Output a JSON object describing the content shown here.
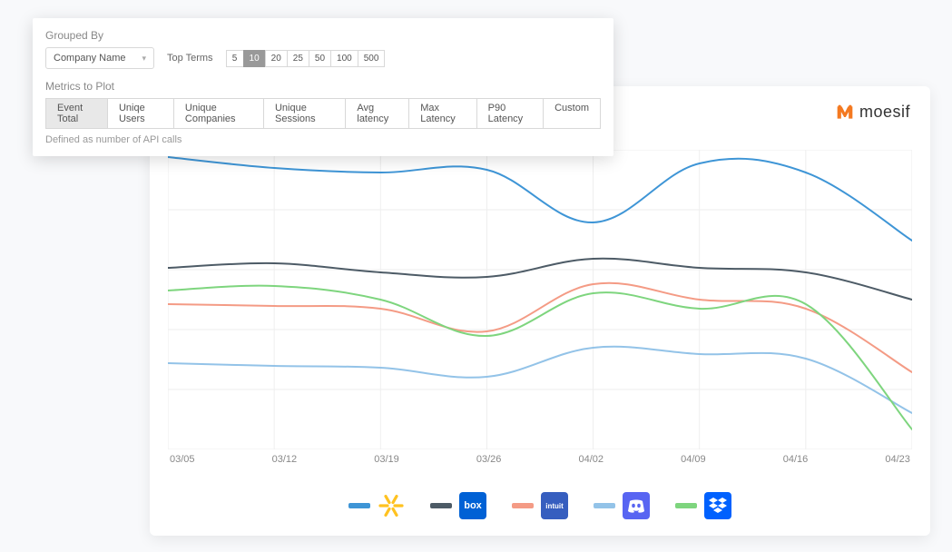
{
  "panel": {
    "grouped_by_label": "Grouped By",
    "dropdown_value": "Company Name",
    "top_terms_label": "Top Terms",
    "top_terms": [
      "5",
      "10",
      "20",
      "25",
      "50",
      "100",
      "500"
    ],
    "top_terms_active": "10",
    "metrics_label": "Metrics to Plot",
    "metrics": [
      "Event Total",
      "Uniqe Users",
      "Unique Companies",
      "Unique Sessions",
      "Avg latency",
      "Max Latency",
      "P90 Latency",
      "Custom"
    ],
    "metric_active": "Event Total",
    "helper": "Defined as number of API calls"
  },
  "brand": {
    "name": "moesif",
    "accent_color": "#f47920"
  },
  "chart": {
    "type": "line",
    "background_color": "#ffffff",
    "grid_color": "#eeeeee",
    "axis_label_color": "#888888",
    "axis_label_fontsize": 11,
    "line_width": 2,
    "x_labels": [
      "03/05",
      "03/12",
      "03/19",
      "03/26",
      "04/02",
      "04/09",
      "04/16",
      "04/23"
    ],
    "x_range": [
      0,
      820
    ],
    "y_range": [
      0,
      330
    ],
    "series": [
      {
        "name": "walmart",
        "color": "#3e95d6",
        "values": [
          8,
          20,
          25,
          22,
          80,
          15,
          25,
          100
        ]
      },
      {
        "name": "box",
        "color": "#4d5b66",
        "values": [
          130,
          125,
          135,
          140,
          120,
          130,
          135,
          165
        ]
      },
      {
        "name": "intuit",
        "color": "#f49b85",
        "values": [
          170,
          172,
          175,
          200,
          148,
          165,
          175,
          245
        ]
      },
      {
        "name": "discord",
        "color": "#93c3e8",
        "values": [
          235,
          238,
          240,
          250,
          218,
          225,
          230,
          290
        ]
      },
      {
        "name": "dropbox",
        "color": "#7ed57e",
        "values": [
          155,
          150,
          165,
          205,
          158,
          175,
          170,
          308
        ]
      }
    ]
  },
  "legend": {
    "swatch_width": 24,
    "swatch_height": 6,
    "items": [
      {
        "name": "walmart",
        "swatch_color": "#3e95d6",
        "logo_bg": "#ffffff",
        "logo_fg": "#ffc220"
      },
      {
        "name": "box",
        "swatch_color": "#4d5b66",
        "logo_bg": "#0061d5",
        "logo_fg": "#ffffff",
        "logo_text": "box"
      },
      {
        "name": "intuit",
        "swatch_color": "#f49b85",
        "logo_bg": "#365ebf",
        "logo_fg": "#ffffff",
        "logo_text": "intuit"
      },
      {
        "name": "discord",
        "swatch_color": "#93c3e8",
        "logo_bg": "#5865f2",
        "logo_fg": "#ffffff"
      },
      {
        "name": "dropbox",
        "swatch_color": "#7ed57e",
        "logo_bg": "#0061fe",
        "logo_fg": "#ffffff"
      }
    ]
  }
}
